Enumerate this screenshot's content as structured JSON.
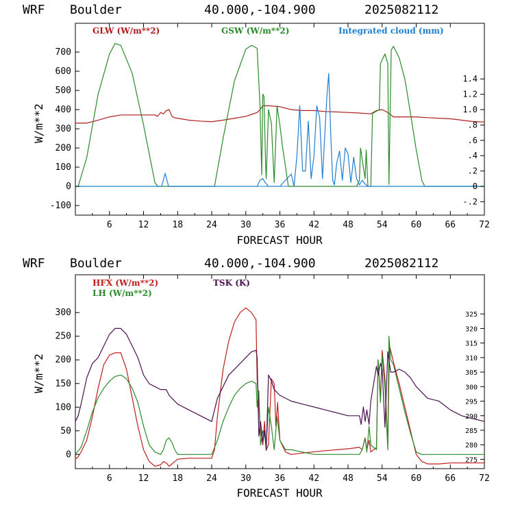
{
  "chart_data": [
    {
      "type": "line",
      "header": {
        "model": "WRF",
        "location": "Boulder",
        "coords": "40.000,-104.900",
        "init": "2025082112"
      },
      "xlabel": "FORECAST HOUR",
      "ylabel": "W/m**2",
      "xlim": [
        0,
        72
      ],
      "ylim": [
        -150,
        850
      ],
      "y2lim": [
        -0.375,
        2.125
      ],
      "xticks": [
        "6",
        "12",
        "18",
        "24",
        "30",
        "36",
        "42",
        "48",
        "54",
        "60",
        "66",
        "72"
      ],
      "yticks": [
        "-100",
        "0",
        "100",
        "200",
        "300",
        "400",
        "500",
        "600",
        "700"
      ],
      "y2ticks": [
        "-.2",
        "0",
        ".2",
        ".4",
        ".6",
        ".8",
        "1.0",
        "1.2",
        "1.4"
      ],
      "grid": false,
      "legend_position": "top",
      "series": [
        {
          "name": "GLW (W/m**2)",
          "color": "#b01c1c",
          "axis": "left",
          "x": [
            0,
            2,
            4,
            6,
            8,
            10,
            12,
            14,
            14.5,
            15,
            15.5,
            16,
            16.5,
            17,
            17.5,
            18,
            20,
            22,
            24,
            26,
            28,
            30,
            31,
            32,
            32.5,
            33,
            34,
            36,
            38,
            40,
            42,
            44,
            46,
            48,
            50,
            52,
            53,
            54,
            55,
            56,
            58,
            60,
            62,
            64,
            66,
            68,
            70,
            72
          ],
          "values": [
            330,
            330,
            345,
            362,
            372,
            372,
            372,
            372,
            365,
            385,
            378,
            395,
            400,
            365,
            357,
            355,
            345,
            340,
            337,
            345,
            355,
            365,
            375,
            385,
            400,
            420,
            420,
            415,
            400,
            395,
            395,
            390,
            388,
            385,
            382,
            378,
            395,
            400,
            385,
            362,
            362,
            362,
            358,
            355,
            352,
            345,
            338,
            335
          ]
        },
        {
          "name": "GSW (W/m**2)",
          "color": "#2a8a2a",
          "axis": "left",
          "x": [
            0,
            0.5,
            2,
            4,
            6,
            7,
            8,
            10,
            12,
            14,
            14.5,
            24.5,
            26,
            28,
            30,
            31,
            32,
            32.5,
            32.8,
            33,
            33.2,
            33.5,
            33.6,
            34,
            34.5,
            35,
            35.5,
            36,
            36.5,
            37,
            37.5,
            49.5,
            50,
            50.2,
            51,
            51.2,
            51.5,
            52,
            52.3,
            53.5,
            53.7,
            54,
            54.5,
            55,
            55.2,
            55.6,
            56,
            57,
            58,
            59,
            60,
            61,
            61.5,
            72
          ],
          "values": [
            0,
            0,
            150,
            480,
            690,
            745,
            735,
            590,
            320,
            20,
            0,
            0,
            250,
            550,
            715,
            735,
            720,
            420,
            60,
            480,
            470,
            100,
            40,
            400,
            330,
            20,
            420,
            320,
            200,
            100,
            0,
            0,
            30,
            200,
            40,
            190,
            0,
            0,
            380,
            400,
            640,
            660,
            690,
            640,
            10,
            710,
            730,
            670,
            560,
            380,
            190,
            30,
            0,
            0
          ]
        },
        {
          "name": "Integrated cloud (mm)",
          "color": "#1f7ed0",
          "axis": "right",
          "x": [
            0,
            15.2,
            15.8,
            16.4,
            32,
            32.5,
            33,
            33.5,
            34,
            36,
            37,
            38,
            38.5,
            39,
            39.5,
            40,
            40.5,
            41,
            41.5,
            42,
            42.5,
            43,
            43.5,
            44,
            44.3,
            44.6,
            45,
            45.3,
            45.6,
            46,
            46.5,
            47,
            47.5,
            48,
            48.5,
            49,
            49.5,
            50,
            50.5,
            51,
            51.5,
            52,
            72
          ],
          "values": [
            0,
            0,
            0.17,
            0,
            0,
            0.08,
            0.1,
            0.04,
            0,
            0,
            0.08,
            0.16,
            0,
            0.4,
            1.05,
            0.2,
            0.2,
            0.85,
            0.1,
            0.4,
            1.05,
            0.9,
            0.1,
            0.8,
            1.2,
            1.47,
            0.6,
            0.08,
            0.02,
            0.3,
            0.46,
            0.08,
            0.5,
            0.42,
            0.05,
            0.38,
            0.1,
            0.02,
            0.08,
            0.03,
            0,
            0,
            0
          ]
        }
      ]
    },
    {
      "type": "line",
      "header": {
        "model": "WRF",
        "location": "Boulder",
        "coords": "40.000,-104.900",
        "init": "2025082112"
      },
      "xlabel": "FORECAST HOUR",
      "ylabel": "W/m**2",
      "xlim": [
        0,
        72
      ],
      "ylim": [
        -30,
        380
      ],
      "y2lim": [
        271.8,
        338.48
      ],
      "xticks": [
        "6",
        "12",
        "18",
        "24",
        "30",
        "36",
        "42",
        "48",
        "54",
        "60",
        "66",
        "72"
      ],
      "yticks": [
        "0",
        "50",
        "100",
        "150",
        "200",
        "250",
        "300"
      ],
      "y2ticks": [
        "275",
        "280",
        "285",
        "290",
        "295",
        "300",
        "305",
        "310",
        "315",
        "320",
        "325"
      ],
      "grid": false,
      "legend_position": "top-left",
      "series": [
        {
          "name": "HFX (W/m**2)",
          "color": "#c01c1c",
          "axis": "left",
          "x": [
            0,
            0.5,
            1,
            2,
            3,
            4,
            5,
            6,
            7,
            8,
            9,
            10,
            11,
            12,
            13,
            14,
            15,
            15.5,
            16,
            16.5,
            17,
            18,
            20,
            22,
            24,
            24.5,
            25,
            26,
            27,
            28,
            29,
            30,
            31,
            31.8,
            32,
            32.3,
            32.5,
            33,
            33.3,
            33.6,
            34,
            34.5,
            35,
            35.3,
            35.6,
            36,
            37,
            38,
            40,
            44,
            48,
            50,
            50.5,
            51,
            51.3,
            51.7,
            52,
            53,
            53.3,
            53.7,
            54,
            54.5,
            55,
            55.3,
            55.6,
            56,
            57,
            58,
            59,
            60,
            61,
            62,
            64,
            66,
            68,
            72
          ],
          "values": [
            -10,
            -5,
            5,
            30,
            80,
            140,
            190,
            210,
            215,
            215,
            180,
            120,
            60,
            10,
            -15,
            -25,
            -22,
            -15,
            -18,
            -25,
            -20,
            -10,
            -8,
            -8,
            -8,
            10,
            80,
            180,
            240,
            280,
            300,
            310,
            300,
            285,
            160,
            100,
            60,
            20,
            70,
            10,
            20,
            160,
            150,
            60,
            110,
            30,
            5,
            0,
            3,
            8,
            12,
            15,
            10,
            35,
            10,
            30,
            5,
            15,
            200,
            120,
            220,
            160,
            20,
            230,
            215,
            195,
            150,
            100,
            50,
            0,
            -15,
            -20,
            -20,
            -18,
            -18,
            -18
          ]
        },
        {
          "name": "LH  (W/m**2)",
          "color": "#2a8a2a",
          "axis": "left",
          "x": [
            0,
            1,
            2,
            3,
            4,
            5,
            6,
            7,
            8,
            9,
            10,
            11,
            12,
            13,
            14,
            15,
            15.5,
            16,
            16.5,
            17,
            17.5,
            18,
            20,
            22,
            24,
            25,
            26,
            27,
            28,
            29,
            30,
            31,
            31.8,
            32,
            32.3,
            32.6,
            33,
            33.3,
            33.6,
            34,
            34.5,
            35,
            35.5,
            36,
            36.5,
            37,
            38,
            40,
            42,
            44,
            46,
            48,
            50,
            50.5,
            51,
            51.3,
            51.7,
            52,
            53,
            53.3,
            53.7,
            54,
            54.5,
            55,
            55.2,
            55.5,
            56,
            57,
            58,
            59,
            60,
            61,
            62,
            64,
            66,
            68,
            72
          ],
          "values": [
            0,
            15,
            50,
            90,
            120,
            140,
            155,
            165,
            168,
            160,
            140,
            110,
            60,
            20,
            5,
            0,
            10,
            30,
            35,
            25,
            10,
            0,
            0,
            0,
            0,
            30,
            70,
            100,
            125,
            140,
            150,
            155,
            150,
            100,
            135,
            20,
            50,
            40,
            20,
            100,
            60,
            10,
            80,
            30,
            20,
            10,
            10,
            5,
            0,
            0,
            0,
            0,
            0,
            10,
            35,
            5,
            60,
            20,
            10,
            200,
            110,
            210,
            140,
            10,
            250,
            200,
            190,
            140,
            90,
            45,
            5,
            0,
            0,
            0,
            0,
            0,
            0
          ]
        },
        {
          "name": "TSK (K)",
          "color": "#4a1050",
          "axis": "right",
          "x": [
            0,
            0.5,
            1,
            2,
            3,
            4,
            5,
            6,
            7,
            8,
            9,
            10,
            11,
            12,
            13,
            14,
            15,
            16,
            16.5,
            17,
            18,
            20,
            22,
            24,
            24.5,
            25,
            26,
            27,
            28,
            29,
            30,
            31,
            31.8,
            32,
            32.3,
            32.6,
            33,
            33.3,
            33.6,
            34,
            34.5,
            35,
            36,
            38,
            40,
            42,
            44,
            46,
            48,
            50,
            50.3,
            50.7,
            51,
            51.3,
            51.7,
            52,
            53,
            53.3,
            53.7,
            54,
            54.5,
            55,
            55.5,
            56,
            57,
            58,
            59,
            60,
            62,
            64,
            66,
            68,
            70,
            72
          ],
          "values": [
            288,
            290,
            294,
            303,
            308,
            310,
            314,
            318,
            320,
            320,
            318,
            314,
            310,
            304,
            301,
            300,
            299,
            299,
            297,
            296,
            294,
            292,
            290,
            288,
            292,
            296,
            300,
            304,
            306,
            308,
            310,
            312,
            312.5,
            310,
            283,
            288,
            281,
            285,
            278,
            304,
            302,
            299,
            297,
            295,
            294,
            293,
            292,
            291,
            290,
            290,
            287,
            293,
            288,
            292,
            287,
            295,
            307,
            304,
            308,
            306,
            286,
            312,
            305,
            305,
            306,
            305,
            303,
            300,
            296,
            295,
            292,
            290,
            289,
            288
          ]
        }
      ]
    }
  ]
}
